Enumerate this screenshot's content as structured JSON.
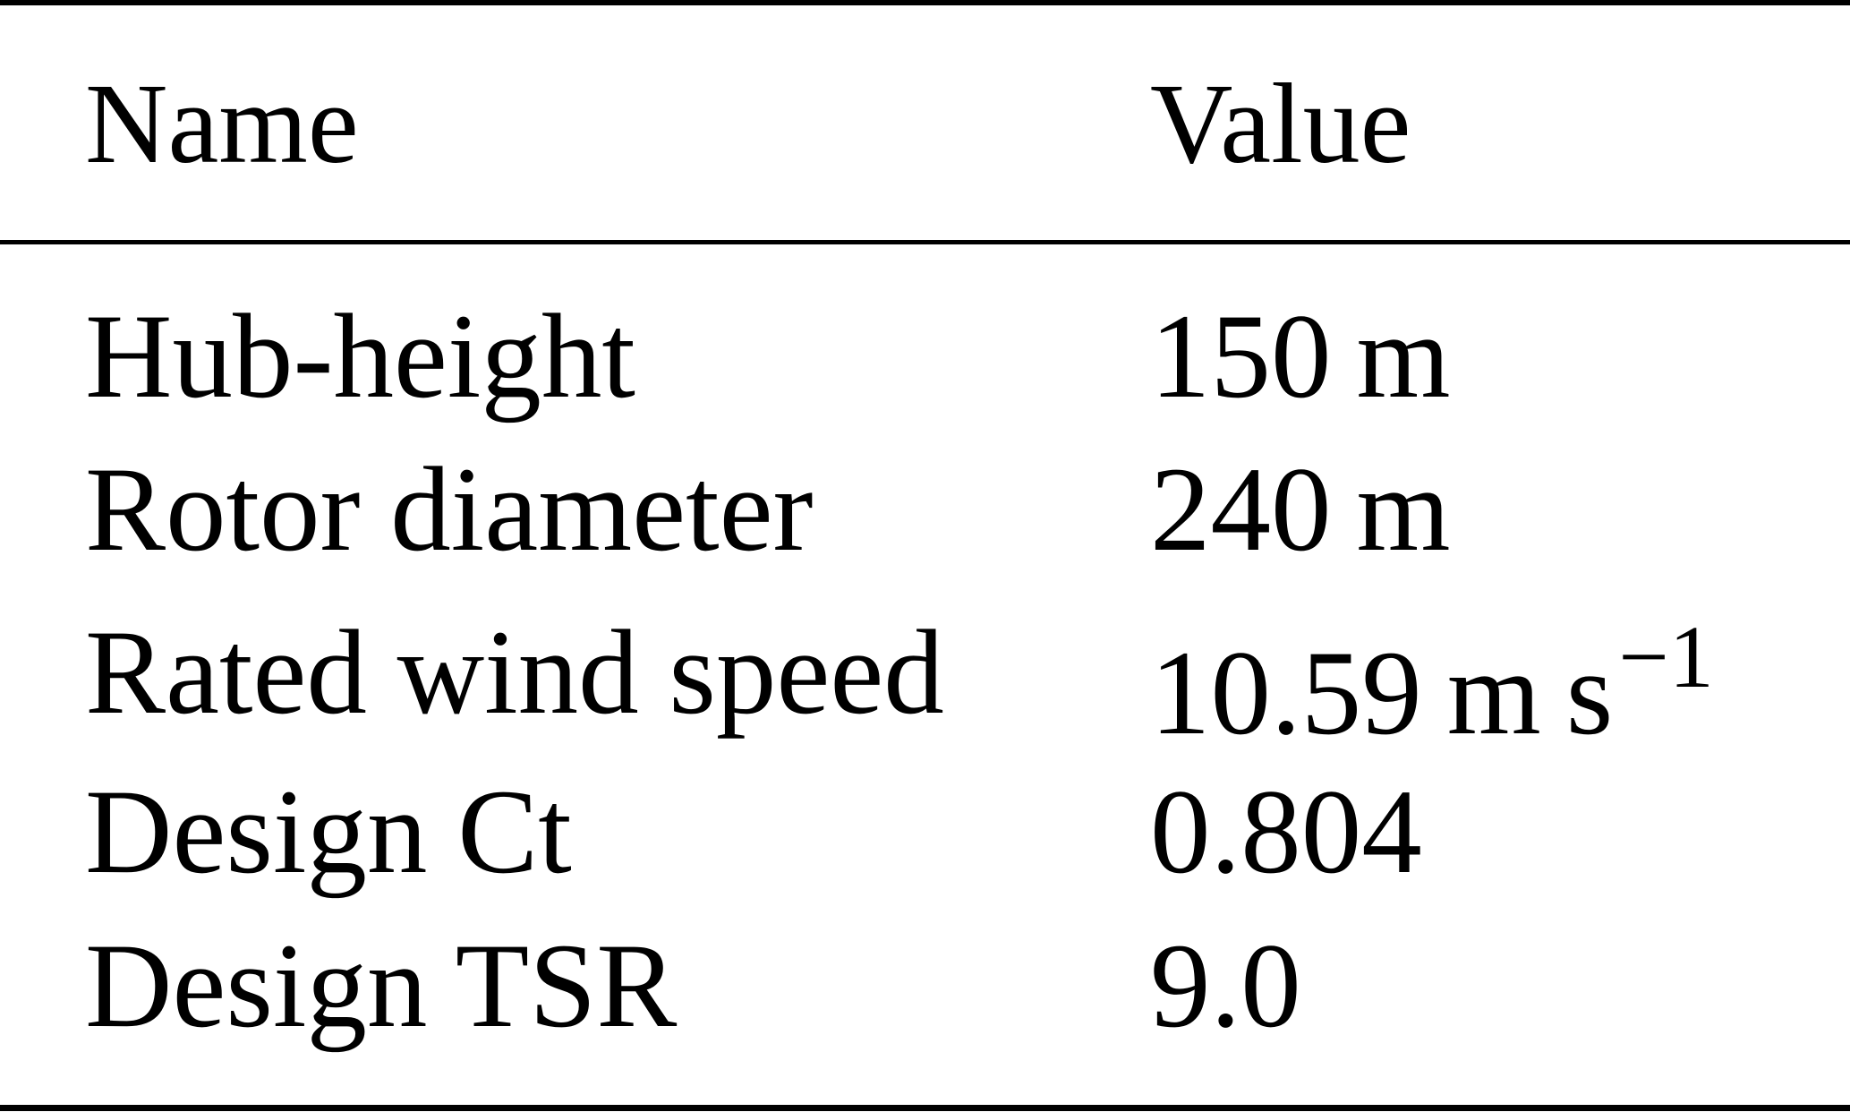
{
  "table": {
    "headers": {
      "name": "Name",
      "value": "Value"
    },
    "rows": [
      {
        "name": "Hub-height",
        "value_number": "150",
        "value_unit": "m",
        "value_unit2": "",
        "value_sup": ""
      },
      {
        "name": "Rotor diameter",
        "value_number": "240",
        "value_unit": "m",
        "value_unit2": "",
        "value_sup": ""
      },
      {
        "name": "Rated wind speed",
        "value_number": "10.59",
        "value_unit": "m",
        "value_unit2": "s",
        "value_sup": "−1"
      },
      {
        "name": "Design Ct",
        "value_number": "0.804",
        "value_unit": "",
        "value_unit2": "",
        "value_sup": ""
      },
      {
        "name": "Design TSR",
        "value_number": "9.0",
        "value_unit": "",
        "value_unit2": "",
        "value_sup": ""
      }
    ]
  }
}
